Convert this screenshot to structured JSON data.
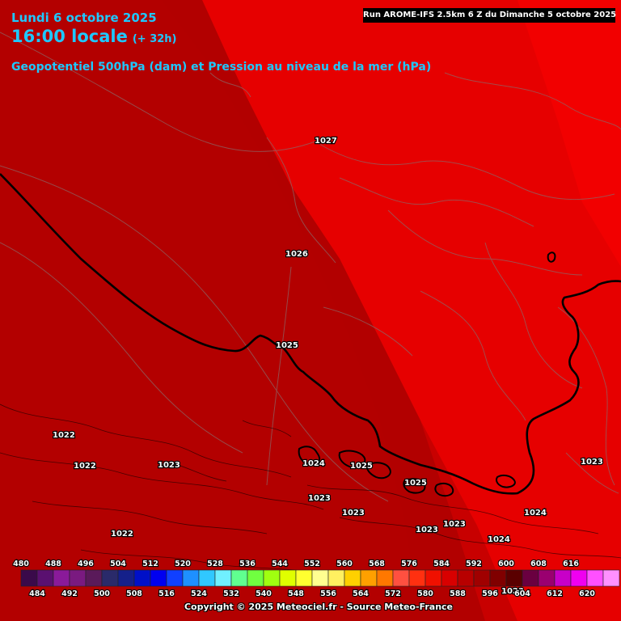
{
  "header": {
    "date": "Lundi 6 octobre 2025",
    "time": "16:00 locale",
    "offset": "(+ 32h)",
    "field_title": "Geopotentiel 500hPa (dam) et Pression au niveau de la mer (hPa)",
    "run_info": "Run AROME-IFS 2.5km 6 Z du Dimanche 5 octobre 2025"
  },
  "map": {
    "background_colors": {
      "dark_zone": "#b20000",
      "mid_zone": "#c80000",
      "light_zone": "#e60000",
      "far_east": "#f20000"
    },
    "pressure_labels": [
      {
        "text": "1027"
      },
      {
        "text": "1026"
      },
      {
        "text": "1025"
      },
      {
        "text": "1022"
      },
      {
        "text": "1022"
      },
      {
        "text": "1023"
      },
      {
        "text": "1024"
      },
      {
        "text": "1025"
      },
      {
        "text": "1025"
      },
      {
        "text": "1023"
      },
      {
        "text": "1023"
      },
      {
        "text": "1022"
      },
      {
        "text": "1023"
      },
      {
        "text": "1023"
      },
      {
        "text": "1024"
      },
      {
        "text": "1024"
      },
      {
        "text": "1023"
      },
      {
        "text": "1023"
      }
    ]
  },
  "colorbar": {
    "top_labels": [
      "480",
      "488",
      "496",
      "504",
      "512",
      "520",
      "528",
      "536",
      "544",
      "552",
      "560",
      "568",
      "576",
      "584",
      "592",
      "600",
      "608",
      "616"
    ],
    "bottom_labels": [
      "484",
      "492",
      "500",
      "508",
      "516",
      "524",
      "532",
      "540",
      "548",
      "556",
      "564",
      "572",
      "580",
      "588",
      "596",
      "604",
      "612",
      "620"
    ],
    "colors": [
      "#3a0a4a",
      "#5a1070",
      "#8a1a9a",
      "#7a1a80",
      "#5a1a5a",
      "#2a2a6a",
      "#15208a",
      "#0010c8",
      "#0000f0",
      "#1040ff",
      "#1e90ff",
      "#30c8ff",
      "#70f0ff",
      "#60ff90",
      "#70ff40",
      "#a0ff10",
      "#e0ff00",
      "#ffff30",
      "#ffff90",
      "#fff060",
      "#ffd000",
      "#ffa000",
      "#ff7800",
      "#ff5040",
      "#ff3010",
      "#f01000",
      "#d80000",
      "#b80000",
      "#a00000",
      "#800000",
      "#5a0000",
      "#6a0040",
      "#9a0070",
      "#c800c8",
      "#f000f0",
      "#ff50ff",
      "#ff90ff"
    ]
  },
  "footer": {
    "copyright": "Copyright © 2025 Meteociel.fr - Source Meteo-France"
  }
}
